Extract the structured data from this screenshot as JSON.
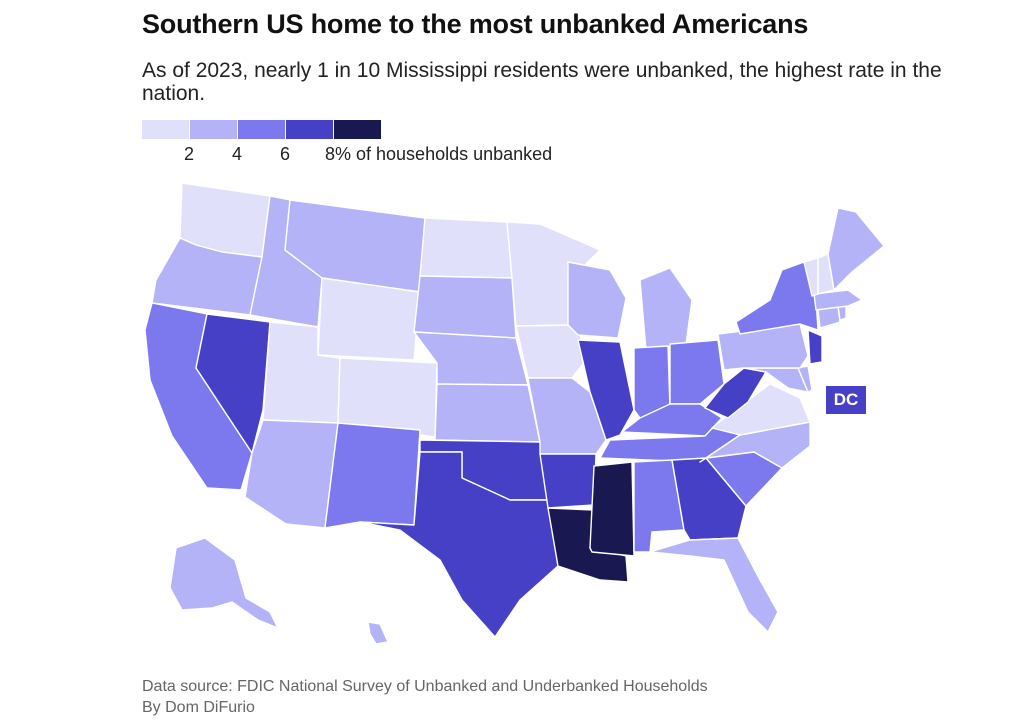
{
  "title": "Southern US home to the most unbanked Americans",
  "subtitle": "As of 2023, nearly 1 in 10 Mississippi residents were unbanked, the highest rate in the nation.",
  "legend": {
    "colors": [
      "#e1e0fb",
      "#b4b3f7",
      "#7c79ef",
      "#4640c7",
      "#1a1850"
    ],
    "ticks": [
      "2",
      "4",
      "6",
      "8% of households unbanked"
    ]
  },
  "dc_label": "DC",
  "footer": {
    "source": "Data source: FDIC National Survey of Unbanked and Underbanked Households",
    "byline": "By Dom DiFurio"
  },
  "map_data": {
    "type": "choropleth",
    "value_label": "% of households unbanked",
    "bins": [
      0,
      2,
      4,
      6,
      8
    ],
    "states": {
      "WA": "#e1e0fb",
      "OR": "#b4b3f7",
      "CA": "#7c79ef",
      "NV": "#4640c7",
      "ID": "#b4b3f7",
      "MT": "#b4b3f7",
      "WY": "#e1e0fb",
      "UT": "#e1e0fb",
      "CO": "#e1e0fb",
      "AZ": "#b4b3f7",
      "NM": "#7c79ef",
      "ND": "#e1e0fb",
      "SD": "#b4b3f7",
      "NE": "#b4b3f7",
      "KS": "#b4b3f7",
      "OK": "#4640c7",
      "TX": "#4640c7",
      "MN": "#e1e0fb",
      "IA": "#e1e0fb",
      "MO": "#b4b3f7",
      "AR": "#4640c7",
      "LA": "#1a1850",
      "WI": "#b4b3f7",
      "IL": "#4640c7",
      "MI": "#b4b3f7",
      "IN": "#7c79ef",
      "OH": "#7c79ef",
      "KY": "#7c79ef",
      "TN": "#7c79ef",
      "MS": "#1a1850",
      "AL": "#7c79ef",
      "GA": "#4640c7",
      "FL": "#b4b3f7",
      "SC": "#7c79ef",
      "NC": "#b4b3f7",
      "VA": "#e1e0fb",
      "WV": "#4640c7",
      "MD": "#b4b3f7",
      "DE": "#b4b3f7",
      "PA": "#b4b3f7",
      "NJ": "#4640c7",
      "NY": "#7c79ef",
      "CT": "#b4b3f7",
      "RI": "#b4b3f7",
      "MA": "#b4b3f7",
      "VT": "#e1e0fb",
      "NH": "#e1e0fb",
      "ME": "#b4b3f7",
      "AK": "#b4b3f7",
      "HI": "#b4b3f7",
      "DC": "#4640c7"
    }
  }
}
